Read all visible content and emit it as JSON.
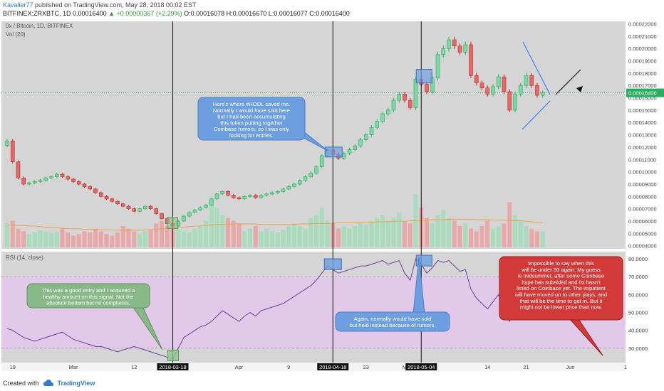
{
  "header": {
    "user": "Kavalier77",
    "published": "published on TradingView.com, May 28, 2018 00:02 EST",
    "symbol": "BITFINEX:ZRXBTC, 1D",
    "last": "0.00016400",
    "change": "▲ +0.00000367 (+2.29%)",
    "ohlc": "O:0.00016078 H:0.00016670 L:0.00016077 C:0.00016400"
  },
  "footer": {
    "created": "Created with",
    "brand": "TradingView"
  },
  "colors": {
    "bull": "#7fd6a3",
    "bull_edge": "#27ae60",
    "bear": "#e06a6a",
    "bear_edge": "#c62828",
    "vol_up": "#a7dcbc",
    "vol_down": "#eaa7a7",
    "rsi_line": "#6f3d9e",
    "rsi_band": "#e2c9ea",
    "pane_bg": "#d5d5d5",
    "box_blue": "#6d9fe0",
    "box_green": "#8fc48f",
    "note_blue": "#6d9fe0",
    "note_green": "#88b888",
    "note_red": "#d23a3a",
    "trend": "#3b82f6"
  },
  "chart_data": [
    {
      "type": "candlestick",
      "title": "0x / Bitcoin, 1D, BITFINEX",
      "indicator": "Vol (20)",
      "price_axis": [
        "0.00022000",
        "0.00021000",
        "0.00020000",
        "0.00019000",
        "0.00018000",
        "0.00017000",
        "0.00016000",
        "0.00015000",
        "0.00014000",
        "0.00013000",
        "0.00012000",
        "0.00011000",
        "0.00010000",
        "0.00009000",
        "0.00008000",
        "0.00007000",
        "0.00006000",
        "0.00005000",
        "0.00004000"
      ],
      "last_price_label": "0.00016400",
      "ylim": [
        3.75e-05,
        0.000222
      ],
      "x_ticks": [
        "19",
        "Mar",
        "12",
        "2018-03-18",
        "Apr",
        "9",
        "2018-04-18",
        "23",
        "M",
        "2018-05-04",
        "14",
        "21",
        "Jun",
        "1"
      ],
      "date_markers": [
        "2018-03-18",
        "2018-04-18",
        "2018-05-04"
      ],
      "closes": [
        0.000125,
        0.000108,
        9.5e-05,
        9e-05,
        9.1e-05,
        9.2e-05,
        9.3e-05,
        9.5e-05,
        9.6e-05,
        9.8e-05,
        9.6e-05,
        9.4e-05,
        9.2e-05,
        9e-05,
        8.8e-05,
        8.6e-05,
        8.3e-05,
        8e-05,
        7.8e-05,
        7.6e-05,
        7.4e-05,
        7.2e-05,
        7e-05,
        6.8e-05,
        7e-05,
        7.2e-05,
        7e-05,
        6.6e-05,
        6.2e-05,
        5.8e-05,
        5.6e-05,
        6e-05,
        6.4e-05,
        6.7e-05,
        6.9e-05,
        7.1e-05,
        7.3e-05,
        7.8e-05,
        8.2e-05,
        8.4e-05,
        8.1e-05,
        7.9e-05,
        7.8e-05,
        8e-05,
        8.1e-05,
        7.9e-05,
        8.1e-05,
        8.2e-05,
        8.3e-05,
        8.4e-05,
        8.6e-05,
        8.8e-05,
        9e-05,
        9.3e-05,
        9.6e-05,
        9.9e-05,
        0.000104,
        0.000113,
        0.000118,
        0.000114,
        0.000111,
        0.000115,
        0.000118,
        0.000121,
        0.000126,
        0.00013,
        0.000136,
        0.000141,
        0.000147,
        0.00015,
        0.000158,
        0.000163,
        0.000158,
        0.000152,
        0.000175,
        0.000171,
        0.000165,
        0.000176,
        0.000195,
        0.0002,
        0.000207,
        0.000202,
        0.000197,
        0.000203,
        0.000178,
        0.000172,
        0.000168,
        0.000163,
        0.000169,
        0.000177,
        0.000165,
        0.00015,
        0.000163,
        0.00017,
        0.000178,
        0.00017,
        0.000162,
        0.000164
      ],
      "volumes": [
        0.45,
        0.5,
        0.35,
        0.3,
        0.25,
        0.28,
        0.32,
        0.3,
        0.27,
        0.3,
        0.35,
        0.28,
        0.22,
        0.25,
        0.3,
        0.28,
        0.35,
        0.3,
        0.25,
        0.22,
        0.28,
        0.4,
        0.35,
        0.3,
        0.25,
        0.3,
        0.33,
        0.45,
        0.5,
        0.4,
        0.55,
        0.35,
        0.3,
        0.28,
        0.35,
        0.4,
        0.5,
        0.9,
        0.75,
        0.6,
        0.55,
        0.5,
        0.45,
        0.3,
        0.35,
        0.4,
        0.3,
        0.35,
        0.3,
        0.28,
        0.33,
        0.4,
        0.45,
        0.4,
        0.35,
        0.55,
        0.6,
        0.75,
        0.5,
        0.45,
        0.35,
        0.4,
        0.35,
        0.4,
        0.45,
        0.42,
        0.5,
        0.55,
        0.6,
        0.5,
        0.55,
        0.65,
        0.5,
        0.45,
        1.0,
        0.75,
        0.55,
        0.45,
        0.6,
        0.7,
        0.55,
        0.5,
        0.4,
        0.45,
        0.35,
        0.3,
        0.4,
        0.5,
        0.35,
        0.4,
        0.45,
        0.85,
        0.6,
        0.5,
        0.4,
        0.35,
        0.3,
        0.3
      ],
      "ma_volume": [
        0.42,
        0.42,
        0.41,
        0.41,
        0.4,
        0.4,
        0.39,
        0.38,
        0.38,
        0.37,
        0.36,
        0.35,
        0.35,
        0.35,
        0.34,
        0.34,
        0.34,
        0.33,
        0.33,
        0.33,
        0.32,
        0.32,
        0.32,
        0.32,
        0.32,
        0.33,
        0.33,
        0.34,
        0.35,
        0.35,
        0.36,
        0.37,
        0.38,
        0.39,
        0.4,
        0.4,
        0.41,
        0.42,
        0.43,
        0.43,
        0.43,
        0.44,
        0.44,
        0.44,
        0.44,
        0.44,
        0.43,
        0.43,
        0.43,
        0.43,
        0.43,
        0.43,
        0.43,
        0.44,
        0.44,
        0.44,
        0.45,
        0.45,
        0.45,
        0.45,
        0.46,
        0.46,
        0.46,
        0.46,
        0.47,
        0.47,
        0.47,
        0.48,
        0.48,
        0.48,
        0.49,
        0.49,
        0.49,
        0.5,
        0.5,
        0.51,
        0.51,
        0.52,
        0.52,
        0.52,
        0.53,
        0.53,
        0.53,
        0.53,
        0.53,
        0.52,
        0.52,
        0.52,
        0.51,
        0.51,
        0.51,
        0.5,
        0.5,
        0.5,
        0.49,
        0.48,
        0.47,
        0.46
      ]
    },
    {
      "type": "line",
      "title": "RSI (14, close)",
      "y_axis": [
        "80.0000",
        "70.0000",
        "60.0000",
        "50.0000",
        "40.0000",
        "30.0000"
      ],
      "ylim": [
        22,
        84
      ],
      "band": [
        30,
        70
      ],
      "values": [
        41,
        40,
        38,
        36,
        35,
        34,
        35,
        36,
        37,
        38,
        39,
        37,
        35,
        34,
        33,
        32,
        31,
        31,
        30,
        29,
        28,
        29,
        30,
        31,
        30,
        29,
        28,
        27,
        26,
        25,
        24,
        30,
        36,
        38,
        40,
        42,
        43,
        45,
        48,
        51,
        49,
        47,
        45,
        48,
        50,
        48,
        51,
        52,
        53,
        54,
        55,
        57,
        59,
        61,
        63,
        65,
        68,
        72,
        76,
        74,
        72,
        73,
        74,
        75,
        76,
        76,
        77,
        78,
        79,
        77,
        78,
        79,
        72,
        68,
        80,
        77,
        72,
        75,
        79,
        78,
        79,
        76,
        73,
        74,
        63,
        58,
        55,
        52,
        56,
        60,
        52,
        45,
        55,
        57,
        60,
        52,
        50,
        51
      ]
    }
  ],
  "annotations": {
    "hodl": [
      "Here's where #HODL saved me.",
      "Normally I would have sold here",
      "but I had been accumulating",
      "this token putting together",
      "Coinbase rumors, so I was only",
      "looking for entries."
    ],
    "entry": [
      "This was a good entry and I acquired a",
      "healthy amount on this signal. Not the",
      "absolute bottom but no complaints."
    ],
    "sold": [
      "Again, normally would have sold",
      "but held instead because of rumors."
    ],
    "future": [
      "Impossible to say when this",
      "will be under 30 again. My guess",
      "is midsummer, after some Coinbase",
      "hype has subsided and 0x hasn't",
      "listed on Coinbase yet. The impatient",
      "will have moved on to other plays, and",
      "that will be the time to get in. But it",
      "might not be lower price than now."
    ]
  }
}
